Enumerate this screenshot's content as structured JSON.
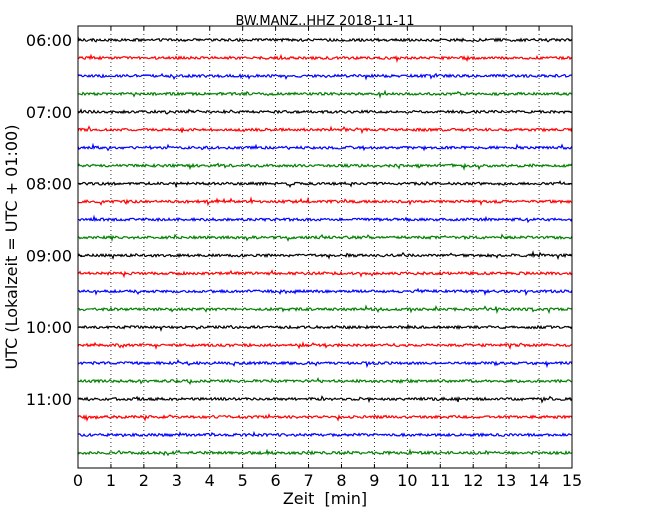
{
  "chart_data": {
    "type": "line",
    "title": "BW.MANZ..HHZ 2018-11-11",
    "xlabel": "Zeit  [min]",
    "ylabel": "UTC (Lokalzeit = UTC + 01:00)",
    "xlim": [
      0,
      15
    ],
    "x_ticks": [
      "0",
      "1",
      "2",
      "3",
      "4",
      "5",
      "6",
      "7",
      "8",
      "9",
      "10",
      "11",
      "12",
      "13",
      "14",
      "15"
    ],
    "y_ticks": [
      "06:00",
      "07:00",
      "08:00",
      "09:00",
      "10:00",
      "11:00"
    ],
    "y_tick_rows": [
      0,
      4,
      8,
      12,
      16,
      20
    ],
    "grid": "vertical dotted",
    "trace_colors": [
      "#000000",
      "#ff0000",
      "#0000ff",
      "#008000"
    ],
    "traces": 24,
    "minutes_per_trace": 15
  }
}
